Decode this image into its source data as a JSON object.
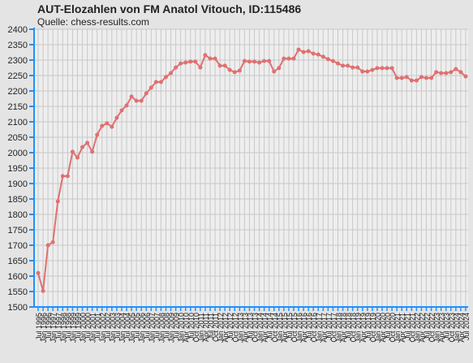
{
  "chart_data": {
    "type": "line",
    "title": "AUT-Elozahlen von FM Anatol Vitouch, ID:115486",
    "subtitle": "Quelle: chess-results.com",
    "categories": [
      "Jul 1995",
      "Jan 1996",
      "Jul 1996",
      "Jan 1997",
      "Jul 1997",
      "Jan 1998",
      "Jul 1998",
      "Jan 1999",
      "Jul 1999",
      "Jan 2000",
      "Jul 2000",
      "Jan 2001",
      "Jul 2001",
      "Jan 2002",
      "Jul 2002",
      "Jan 2003",
      "Jul 2003",
      "Jan 2004",
      "Jul 2004",
      "Jan 2005",
      "Jul 2005",
      "Jan 2006",
      "Jul 2006",
      "Jan 2007",
      "Jul 2007",
      "Jan 2008",
      "Jul 2008",
      "Jan 2009",
      "Jul 2009",
      "Jan 2010",
      "Apr 2010",
      "Jul 2010",
      "Oct 2010",
      "Jan 2011",
      "Apr 2011",
      "Jul 2011",
      "Oct 2011",
      "Jan 2012",
      "Apr 2012",
      "Jul 2012",
      "Oct 2012",
      "Jan 2013",
      "Apr 2013",
      "Jul 2013",
      "Oct 2013",
      "Jan 2014",
      "Apr 2014",
      "Jul 2014",
      "Oct 2014",
      "Jan 2015",
      "Apr 2015",
      "Jul 2015",
      "Oct 2015",
      "Jan 2016",
      "Apr 2016",
      "Jul 2016",
      "Oct 2016",
      "Jan 2017",
      "Apr 2017",
      "Jul 2017",
      "Oct 2017",
      "Jan 2018",
      "Apr 2018",
      "Jul 2018",
      "Oct 2018",
      "Jan 2019",
      "Apr 2019",
      "Jul 2019",
      "Oct 2019",
      "Jan 2020",
      "Apr 2020",
      "Jul 2020",
      "Oct 2020",
      "Jan 2021",
      "Apr 2021",
      "Jul 2021",
      "Oct 2021",
      "Jan 2022",
      "Apr 2022",
      "Jul 2022",
      "Oct 2022",
      "Jan 2023",
      "Apr 2023",
      "Jul 2023",
      "Oct 2023",
      "Jan 2024",
      "Apr 2024",
      "Jul 2024"
    ],
    "values": [
      1610,
      1552,
      1700,
      1710,
      1842,
      1924,
      1924,
      2003,
      1984,
      2018,
      2032,
      2003,
      2058,
      2087,
      2095,
      2084,
      2113,
      2137,
      2153,
      2182,
      2168,
      2168,
      2192,
      2211,
      2229,
      2229,
      2245,
      2258,
      2276,
      2289,
      2292,
      2295,
      2295,
      2276,
      2316,
      2305,
      2305,
      2282,
      2282,
      2268,
      2261,
      2266,
      2297,
      2295,
      2295,
      2292,
      2297,
      2297,
      2263,
      2274,
      2305,
      2305,
      2305,
      2334,
      2326,
      2329,
      2321,
      2318,
      2311,
      2303,
      2297,
      2289,
      2282,
      2282,
      2276,
      2276,
      2263,
      2263,
      2268,
      2274,
      2274,
      2274,
      2274,
      2242,
      2242,
      2245,
      2234,
      2234,
      2245,
      2242,
      2242,
      2261,
      2258,
      2258,
      2261,
      2271,
      2261,
      2247
    ],
    "color": "#e07070",
    "ylim": [
      1500,
      2400
    ],
    "yticks": [
      1500,
      1550,
      1600,
      1650,
      1700,
      1750,
      1800,
      1850,
      1900,
      1950,
      2000,
      2050,
      2100,
      2150,
      2200,
      2250,
      2300,
      2350,
      2400
    ],
    "grid": true
  }
}
